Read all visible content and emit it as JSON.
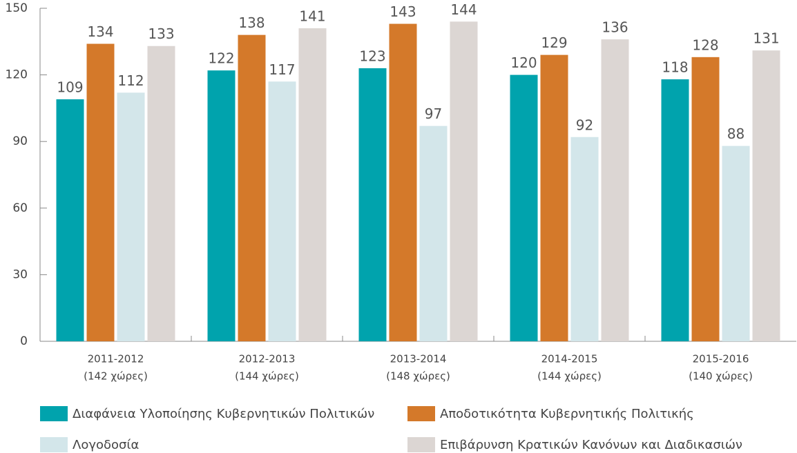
{
  "chart_data": {
    "type": "bar",
    "categories": [
      [
        "2011-2012",
        "(142 χώρες)"
      ],
      [
        "2012-2013",
        "(144 χώρες)"
      ],
      [
        "2013-2014",
        "(148 χώρες)"
      ],
      [
        "2014-2015",
        "(144 χώρες)"
      ],
      [
        "2015-2016",
        "(140 χώρες)"
      ]
    ],
    "series": [
      {
        "name": "Διαφάνεια Υλοποίησης Κυβερνητικών Πολιτικών",
        "color": "#00a3ad",
        "values": [
          109,
          122,
          123,
          120,
          118
        ]
      },
      {
        "name": "Αποδοτικότητα Κυβερνητικής Πολιτικής",
        "color": "#d4792a",
        "values": [
          134,
          138,
          143,
          129,
          128
        ]
      },
      {
        "name": "Λογοδοσία",
        "color": "#d3e6ea",
        "values": [
          112,
          117,
          97,
          92,
          88
        ]
      },
      {
        "name": "Επιβάρυνση Κρατικών Κανόνων και Διαδικασιών",
        "color": "#dcd6d3",
        "values": [
          133,
          141,
          144,
          136,
          131
        ]
      }
    ],
    "ylim": [
      0,
      150
    ],
    "yticks": [
      0,
      30,
      60,
      90,
      120,
      150
    ]
  }
}
